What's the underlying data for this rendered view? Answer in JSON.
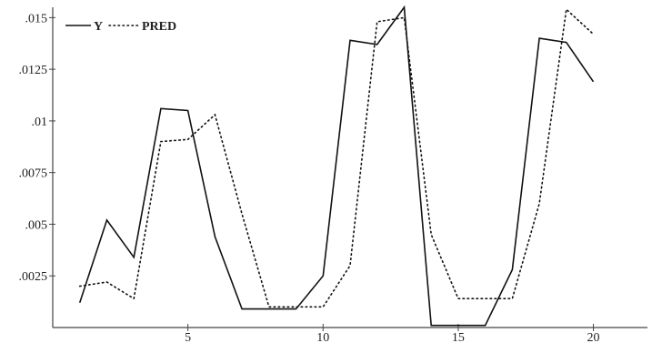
{
  "chart_data": {
    "type": "line",
    "title": "",
    "xlabel": "",
    "ylabel": "",
    "xlim": [
      0,
      22
    ],
    "ylim": [
      0,
      0.0155
    ],
    "x_ticks": [
      {
        "value": 5,
        "label": "5"
      },
      {
        "value": 10,
        "label": "10"
      },
      {
        "value": 15,
        "label": "15"
      },
      {
        "value": 20,
        "label": "20"
      }
    ],
    "y_ticks": [
      {
        "value": 0.0025,
        "label": ".0025"
      },
      {
        "value": 0.005,
        "label": ".005"
      },
      {
        "value": 0.0075,
        "label": ".0075"
      },
      {
        "value": 0.01,
        "label": ".01"
      },
      {
        "value": 0.0125,
        "label": ".0125"
      },
      {
        "value": 0.015,
        "label": ".015"
      }
    ],
    "grid": false,
    "legend_position": "top-left",
    "series": [
      {
        "name": "Y",
        "style": "solid",
        "color": "#111111",
        "x": [
          1,
          2,
          3,
          4,
          5,
          6,
          7,
          8,
          9,
          10,
          11,
          12,
          13,
          14,
          15,
          16,
          17,
          18,
          19,
          20
        ],
        "values": [
          0.0012,
          0.0052,
          0.0034,
          0.0106,
          0.0105,
          0.0044,
          0.0009,
          0.0009,
          0.0009,
          0.0025,
          0.0139,
          0.0137,
          0.0155,
          0.0001,
          0.0001,
          0.0001,
          0.0028,
          0.014,
          0.0138,
          0.0119
        ]
      },
      {
        "name": "PRED",
        "style": "dotted",
        "color": "#111111",
        "x": [
          1,
          2,
          3,
          4,
          5,
          6,
          7,
          8,
          9,
          10,
          11,
          12,
          13,
          14,
          15,
          16,
          17,
          18,
          19,
          20
        ],
        "values": [
          0.002,
          0.0022,
          0.0014,
          0.009,
          0.0091,
          0.0103,
          0.0055,
          0.001,
          0.001,
          0.001,
          0.003,
          0.0148,
          0.015,
          0.0045,
          0.0014,
          0.0014,
          0.0014,
          0.006,
          0.0154,
          0.0142
        ]
      }
    ]
  }
}
